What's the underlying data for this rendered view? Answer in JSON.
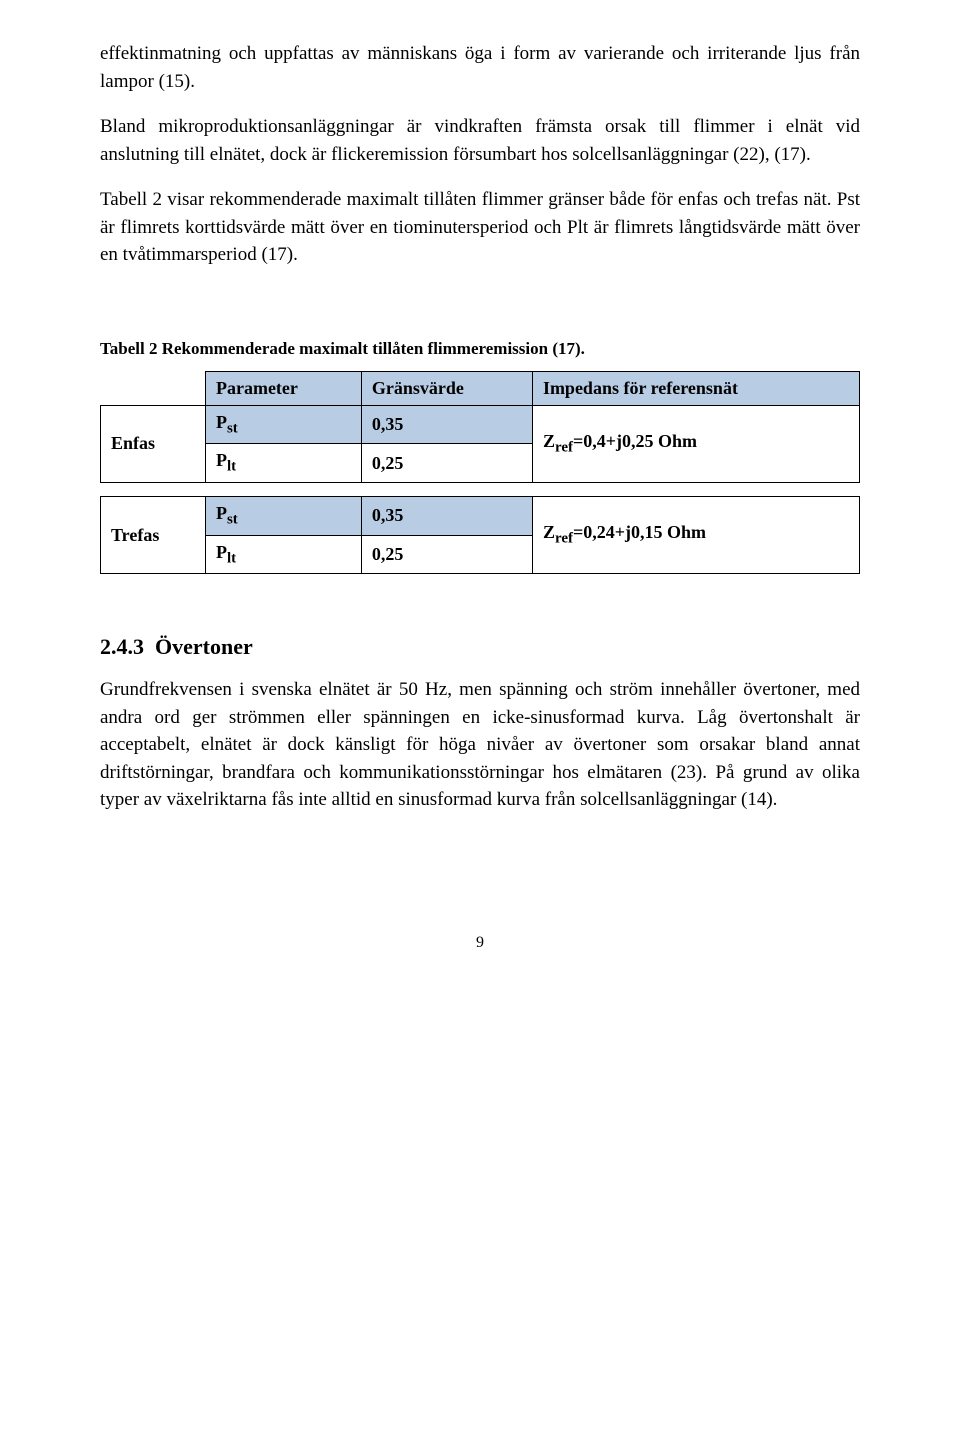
{
  "para1": "effektinmatning och uppfattas av människans öga i form av varierande och irriterande ljus från lampor (15).",
  "para2": "Bland mikroproduktionsanläggningar är vindkraften främsta orsak till flimmer i elnät vid anslutning till elnätet, dock är flickeremission försumbart hos solcellsanläggningar (22), (17).",
  "para3": "Tabell 2 visar rekommenderade maximalt tillåten flimmer gränser både för enfas och trefas nät. Pst är flimrets korttidsvärde mätt över en tiominutersperiod och Plt är flimrets långtidsvärde mätt över en tvåtimmarsperiod (17).",
  "tableCaption": "Tabell 2 Rekommenderade maximalt tillåten flimmeremission (17).",
  "table": {
    "headers": {
      "param": "Parameter",
      "limit": "Gränsvärde",
      "impedance": "Impedans för referensnät"
    },
    "rows": [
      {
        "group": "Enfas",
        "param_html": "P<sub>st</sub>",
        "limit": "0,35",
        "imp_html": "Z<sub>ref</sub>=0,4+j0,25 Ohm"
      },
      {
        "group": "",
        "param_html": "P<sub>lt</sub>",
        "limit": "0,25",
        "imp_html": ""
      },
      {
        "group": "Trefas",
        "param_html": "P<sub>st</sub>",
        "limit": "0,35",
        "imp_html": "Z<sub>ref</sub>=0,24+j0,15 Ohm"
      },
      {
        "group": "",
        "param_html": "P<sub>lt</sub>",
        "limit": "0,25",
        "imp_html": ""
      }
    ],
    "header_bg": "#b8cce4",
    "border_color": "#000000"
  },
  "sectionNumber": "2.4.3",
  "sectionTitle": "Övertoner",
  "para4": "Grundfrekvensen i svenska elnätet är 50 Hz, men spänning och ström innehåller övertoner, med andra ord ger strömmen eller spänningen en icke-sinusformad kurva. Låg övertonshalt är acceptabelt, elnätet är dock känsligt för höga nivåer av övertoner som orsakar bland annat driftstörningar, brandfara och kommunikationsstörningar hos elmätaren (23). På grund av olika typer av växelriktarna fås inte alltid en sinusformad kurva från solcellsanläggningar (14).",
  "pageNumber": "9"
}
